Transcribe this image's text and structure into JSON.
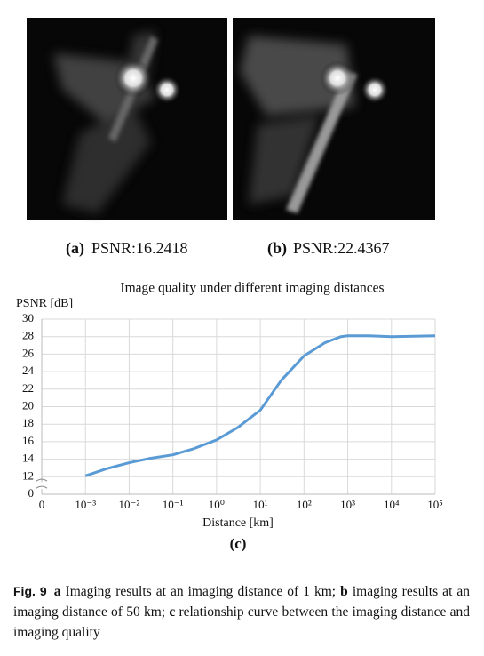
{
  "panels": [
    {
      "label": "(a)",
      "caption": "PSNR:16.2418"
    },
    {
      "label": "(b)",
      "caption": "PSNR:22.4367"
    }
  ],
  "chart_data": {
    "type": "line",
    "title": "Image quality under different imaging distances",
    "y_label": "PSNR [dB]",
    "x_label": "Distance [km]",
    "panel_label": "(c)",
    "x": [
      0.001,
      0.003,
      0.01,
      0.03,
      0.1,
      0.3,
      1,
      3,
      10,
      30,
      100,
      300,
      700,
      1000,
      3000,
      10000,
      100000
    ],
    "series": [
      {
        "name": "PSNR",
        "color": "#5b9bd5",
        "values": [
          12.1,
          12.9,
          13.6,
          14.1,
          14.5,
          15.2,
          16.2,
          17.6,
          19.6,
          23.0,
          25.8,
          27.3,
          28.0,
          28.1,
          28.1,
          28.0,
          28.1
        ]
      }
    ],
    "xscale": "log",
    "xlim": [
      0.0001,
      100000
    ],
    "xticks": [
      0,
      {
        "value": 0.001,
        "label": "10⁻³"
      },
      {
        "value": 0.01,
        "label": "10⁻²"
      },
      {
        "value": 0.1,
        "label": "10⁻¹"
      },
      {
        "value": 1,
        "label": "10⁰"
      },
      {
        "value": 10,
        "label": "10¹"
      },
      {
        "value": 100,
        "label": "10²"
      },
      {
        "value": 1000,
        "label": "10³"
      },
      {
        "value": 10000,
        "label": "10⁴"
      },
      {
        "value": 100000,
        "label": "10⁵"
      }
    ],
    "ylim": [
      10,
      30
    ],
    "yticks": [
      0,
      12,
      14,
      16,
      18,
      20,
      22,
      24,
      26,
      28,
      30
    ],
    "axis_break": true,
    "grid": true
  },
  "figure_caption": {
    "label": "Fig. 9",
    "parts": [
      {
        "key": "a",
        "text": "Imaging results at an imaging distance of 1 km;"
      },
      {
        "key": "b",
        "text": "imaging results at an imaging distance of 50 km;"
      },
      {
        "key": "c",
        "text": "relationship curve between the imaging distance and imaging quality"
      }
    ]
  }
}
